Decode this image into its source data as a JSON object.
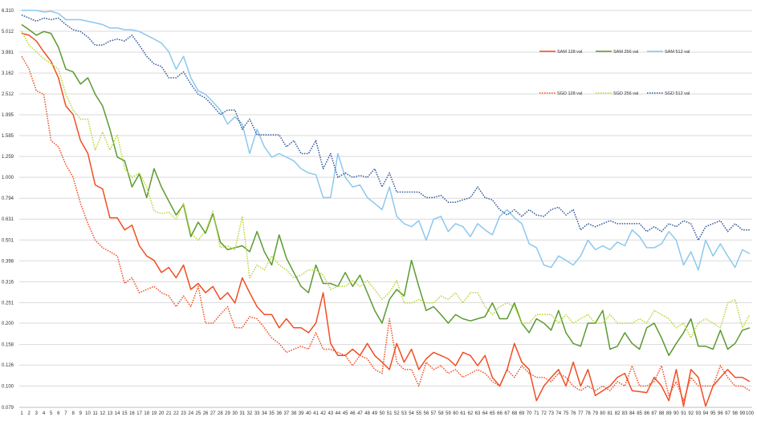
{
  "chart_data": {
    "type": "line",
    "title": "",
    "xlabel": "",
    "ylabel": "",
    "y_scale": "log",
    "ylim": [
      0.079,
      6.31
    ],
    "xlim": [
      1,
      100
    ],
    "y_ticks": [
      "0.079",
      "0.100",
      "0.126",
      "0.158",
      "0.200",
      "0.251",
      "0.316",
      "0.398",
      "0.501",
      "0.631",
      "0.794",
      "1.000",
      "1.259",
      "1.585",
      "1.995",
      "2.512",
      "3.162",
      "3.981",
      "5.012",
      "6.310"
    ],
    "x": [
      1,
      2,
      3,
      4,
      5,
      6,
      7,
      8,
      9,
      10,
      11,
      12,
      13,
      14,
      15,
      16,
      17,
      18,
      19,
      20,
      21,
      22,
      23,
      24,
      25,
      26,
      27,
      28,
      29,
      30,
      31,
      32,
      33,
      34,
      35,
      36,
      37,
      38,
      39,
      40,
      41,
      42,
      43,
      44,
      45,
      46,
      47,
      48,
      49,
      50,
      51,
      52,
      53,
      54,
      55,
      56,
      57,
      58,
      59,
      60,
      61,
      62,
      63,
      64,
      65,
      66,
      67,
      68,
      69,
      70,
      71,
      72,
      73,
      74,
      75,
      76,
      77,
      78,
      79,
      80,
      81,
      82,
      83,
      84,
      85,
      86,
      87,
      88,
      89,
      90,
      91,
      92,
      93,
      94,
      95,
      96,
      97,
      98,
      99,
      100
    ],
    "grid": true,
    "legend_position": "top-right",
    "series": [
      {
        "name": "SAM 128 val",
        "color": "#f04e23",
        "dash": "solid",
        "values": [
          4.9,
          4.8,
          4.5,
          4.0,
          3.6,
          3.0,
          2.2,
          2.0,
          1.5,
          1.3,
          0.92,
          0.88,
          0.64,
          0.64,
          0.56,
          0.59,
          0.47,
          0.42,
          0.4,
          0.35,
          0.37,
          0.33,
          0.38,
          0.29,
          0.31,
          0.28,
          0.3,
          0.26,
          0.28,
          0.25,
          0.33,
          0.28,
          0.24,
          0.22,
          0.22,
          0.19,
          0.21,
          0.19,
          0.19,
          0.18,
          0.2,
          0.28,
          0.16,
          0.14,
          0.14,
          0.15,
          0.14,
          0.16,
          0.14,
          0.13,
          0.12,
          0.16,
          0.13,
          0.15,
          0.12,
          0.135,
          0.145,
          0.14,
          0.135,
          0.125,
          0.145,
          0.14,
          0.125,
          0.14,
          0.11,
          0.1,
          0.12,
          0.16,
          0.13,
          0.12,
          0.085,
          0.1,
          0.11,
          0.12,
          0.1,
          0.13,
          0.1,
          0.12,
          0.09,
          0.095,
          0.1,
          0.11,
          0.115,
          0.095,
          0.094,
          0.093,
          0.11,
          0.1,
          0.085,
          0.12,
          0.08,
          0.12,
          0.11,
          0.08,
          0.1,
          0.11,
          0.12,
          0.11,
          0.11,
          0.105
        ]
      },
      {
        "name": "SAM 256 val",
        "color": "#5b9a32",
        "dash": "solid",
        "values": [
          5.4,
          5.1,
          4.8,
          5.0,
          4.9,
          4.2,
          3.3,
          3.2,
          2.8,
          3.0,
          2.5,
          2.2,
          1.7,
          1.25,
          1.2,
          0.9,
          1.04,
          0.8,
          1.1,
          0.9,
          0.77,
          0.66,
          0.74,
          0.52,
          0.61,
          0.54,
          0.67,
          0.49,
          0.45,
          0.46,
          0.47,
          0.44,
          0.55,
          0.44,
          0.38,
          0.53,
          0.41,
          0.35,
          0.3,
          0.28,
          0.38,
          0.31,
          0.31,
          0.3,
          0.35,
          0.3,
          0.34,
          0.28,
          0.23,
          0.2,
          0.26,
          0.29,
          0.27,
          0.4,
          0.3,
          0.23,
          0.24,
          0.22,
          0.2,
          0.22,
          0.21,
          0.205,
          0.21,
          0.215,
          0.25,
          0.21,
          0.21,
          0.25,
          0.2,
          0.18,
          0.21,
          0.2,
          0.185,
          0.23,
          0.18,
          0.16,
          0.155,
          0.2,
          0.2,
          0.23,
          0.15,
          0.155,
          0.18,
          0.16,
          0.15,
          0.19,
          0.2,
          0.17,
          0.14,
          0.16,
          0.18,
          0.21,
          0.155,
          0.155,
          0.15,
          0.185,
          0.15,
          0.16,
          0.185,
          0.19
        ]
      },
      {
        "name": "SAM 512 val",
        "color": "#8dc8ee",
        "dash": "solid",
        "values": [
          6.31,
          6.31,
          6.31,
          6.2,
          6.25,
          6.1,
          5.7,
          5.7,
          5.7,
          5.6,
          5.5,
          5.4,
          5.2,
          5.2,
          5.1,
          5.1,
          5.0,
          4.8,
          4.6,
          4.4,
          4.0,
          3.3,
          3.8,
          3.0,
          2.6,
          2.5,
          2.3,
          2.1,
          1.8,
          1.95,
          1.8,
          1.3,
          1.7,
          1.4,
          1.25,
          1.3,
          1.25,
          1.2,
          1.1,
          1.05,
          1.03,
          0.8,
          0.8,
          1.3,
          1.0,
          0.9,
          0.92,
          0.8,
          0.75,
          0.7,
          0.9,
          0.65,
          0.6,
          0.58,
          0.62,
          0.5,
          0.63,
          0.65,
          0.55,
          0.6,
          0.58,
          0.52,
          0.6,
          0.56,
          0.53,
          0.65,
          0.7,
          0.64,
          0.6,
          0.48,
          0.46,
          0.38,
          0.37,
          0.42,
          0.4,
          0.38,
          0.42,
          0.5,
          0.45,
          0.47,
          0.45,
          0.49,
          0.47,
          0.56,
          0.52,
          0.46,
          0.46,
          0.48,
          0.55,
          0.5,
          0.38,
          0.44,
          0.36,
          0.5,
          0.42,
          0.48,
          0.42,
          0.37,
          0.45,
          0.43
        ]
      },
      {
        "name": "SGD 128 val",
        "color": "#f04e23",
        "dash": "dotted",
        "values": [
          3.8,
          3.3,
          2.6,
          2.5,
          1.5,
          1.4,
          1.15,
          1.0,
          0.75,
          0.6,
          0.5,
          0.46,
          0.44,
          0.42,
          0.31,
          0.33,
          0.28,
          0.29,
          0.3,
          0.28,
          0.27,
          0.24,
          0.27,
          0.24,
          0.3,
          0.2,
          0.2,
          0.22,
          0.24,
          0.19,
          0.19,
          0.215,
          0.21,
          0.19,
          0.17,
          0.16,
          0.145,
          0.15,
          0.155,
          0.15,
          0.18,
          0.15,
          0.15,
          0.145,
          0.14,
          0.125,
          0.14,
          0.135,
          0.12,
          0.115,
          0.21,
          0.13,
          0.12,
          0.12,
          0.1,
          0.13,
          0.12,
          0.125,
          0.115,
          0.12,
          0.11,
          0.115,
          0.12,
          0.115,
          0.105,
          0.1,
          0.12,
          0.11,
          0.125,
          0.115,
          0.11,
          0.11,
          0.105,
          0.115,
          0.11,
          0.1,
          0.095,
          0.1,
          0.095,
          0.1,
          0.095,
          0.105,
          0.1,
          0.125,
          0.1,
          0.1,
          0.105,
          0.125,
          0.09,
          0.105,
          0.085,
          0.11,
          0.1,
          0.1,
          0.1,
          0.125,
          0.11,
          0.1,
          0.1,
          0.095
        ]
      },
      {
        "name": "SGD 256 val",
        "color": "#b8d432",
        "dash": "dotted",
        "values": [
          5.0,
          4.3,
          4.0,
          3.7,
          3.5,
          3.3,
          2.5,
          2.1,
          1.9,
          1.9,
          1.35,
          1.65,
          1.35,
          1.6,
          1.1,
          1.0,
          1.05,
          0.9,
          0.69,
          0.67,
          0.68,
          0.63,
          0.75,
          0.54,
          0.5,
          0.55,
          0.69,
          0.46,
          0.47,
          0.45,
          0.65,
          0.33,
          0.38,
          0.36,
          0.42,
          0.38,
          0.36,
          0.33,
          0.34,
          0.36,
          0.36,
          0.34,
          0.29,
          0.3,
          0.3,
          0.32,
          0.3,
          0.32,
          0.29,
          0.26,
          0.28,
          0.32,
          0.25,
          0.25,
          0.26,
          0.25,
          0.25,
          0.27,
          0.26,
          0.28,
          0.25,
          0.28,
          0.28,
          0.24,
          0.22,
          0.24,
          0.25,
          0.24,
          0.2,
          0.2,
          0.22,
          0.22,
          0.22,
          0.2,
          0.22,
          0.2,
          0.21,
          0.22,
          0.2,
          0.2,
          0.22,
          0.2,
          0.2,
          0.2,
          0.21,
          0.2,
          0.23,
          0.22,
          0.21,
          0.19,
          0.2,
          0.17,
          0.2,
          0.21,
          0.2,
          0.19,
          0.25,
          0.26,
          0.19,
          0.22
        ]
      },
      {
        "name": "SGD 512 val",
        "color": "#2f5597",
        "dash": "dotted",
        "values": [
          6.0,
          5.8,
          5.6,
          5.8,
          5.7,
          5.8,
          5.4,
          5.1,
          5.0,
          4.7,
          4.3,
          4.3,
          4.5,
          4.6,
          4.5,
          4.8,
          4.3,
          3.8,
          3.5,
          3.4,
          3.0,
          3.0,
          3.2,
          2.8,
          2.5,
          2.4,
          2.2,
          2.0,
          2.1,
          2.1,
          1.7,
          1.9,
          1.6,
          1.6,
          1.6,
          1.6,
          1.4,
          1.5,
          1.3,
          1.3,
          1.5,
          1.1,
          1.3,
          1.0,
          1.05,
          1.0,
          1.02,
          1.0,
          1.1,
          0.9,
          1.05,
          0.85,
          0.85,
          0.85,
          0.85,
          0.8,
          0.8,
          0.82,
          0.76,
          0.76,
          0.78,
          0.8,
          0.9,
          0.8,
          0.78,
          0.7,
          0.66,
          0.7,
          0.65,
          0.7,
          0.66,
          0.65,
          0.7,
          0.72,
          0.66,
          0.7,
          0.56,
          0.6,
          0.58,
          0.6,
          0.62,
          0.6,
          0.6,
          0.6,
          0.6,
          0.55,
          0.58,
          0.55,
          0.6,
          0.58,
          0.62,
          0.6,
          0.5,
          0.58,
          0.6,
          0.62,
          0.55,
          0.6,
          0.56,
          0.56
        ]
      }
    ]
  }
}
